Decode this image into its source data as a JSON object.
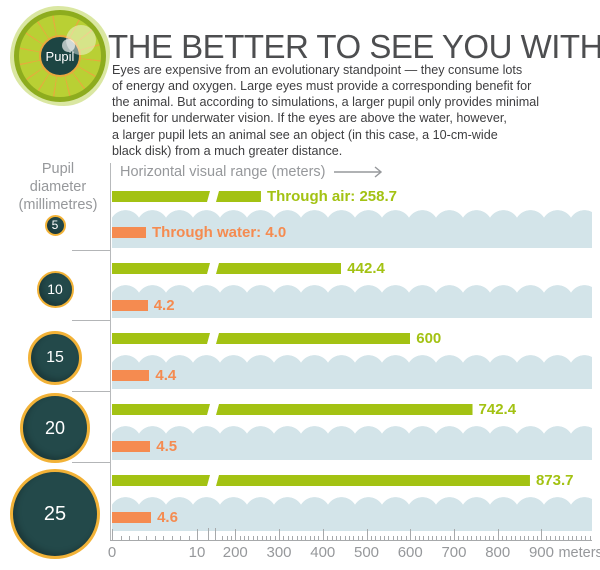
{
  "header": {
    "icon_label": "Pupil",
    "title": "THE BETTER TO SEE YOU WITH",
    "intro": "Eyes are expensive from an evolutionary standpoint — they consume lots\nof energy and oxygen. Large eyes must provide a corresponding benefit for\nthe animal. But according to simulations, a larger pupil only provides minimal\nbenefit for underwater vision. If the eyes are above the water, however,\na larger pupil lets an animal see an object (in this case, a 10-cm-wide\nblack disk) from a much greater distance."
  },
  "colors": {
    "air_green": "#a3c213",
    "water_orange": "#f58b50",
    "water_blue": "#d3e4e9",
    "pupil_teal": "#23494a",
    "ring_gold": "#f2b237",
    "axis_gray": "#96989b",
    "title_gray": "#4d4e50"
  },
  "chart_data": {
    "type": "bar",
    "orientation": "horizontal",
    "title": "THE BETTER TO SEE YOU WITH",
    "category_axis_label": "Pupil diameter (millimetres)",
    "value_axis_label": "Horizontal visual range (meters)",
    "categories": [
      5,
      10,
      15,
      20,
      25
    ],
    "series": [
      {
        "name": "Through air",
        "color": "#a3c213",
        "values": [
          258.7,
          442.4,
          600,
          742.4,
          873.7
        ],
        "labels": [
          "Through air: 258.7",
          "442.4",
          "600",
          "742.4",
          "873.7"
        ]
      },
      {
        "name": "Through water",
        "color": "#f58b50",
        "values": [
          4.0,
          4.2,
          4.4,
          4.5,
          4.6
        ],
        "labels": [
          "Through water: 4.0",
          "4.2",
          "4.4",
          "4.5",
          "4.6"
        ]
      }
    ],
    "axis": {
      "tick_labels": [
        "0",
        "10",
        "200",
        "300",
        "400",
        "500",
        "600",
        "700",
        "800",
        "900"
      ],
      "unit_label": "meters",
      "scale_break": {
        "after_value": 10,
        "before_value": 200
      },
      "minor_step_before_break": 1,
      "minor_step_after_break": 10
    },
    "grid": false,
    "legend": "inline-first-row",
    "notes": "Axis has a scale break between 10 and 200 meters; air bars are drawn broken across it. Light blue band represents water."
  }
}
